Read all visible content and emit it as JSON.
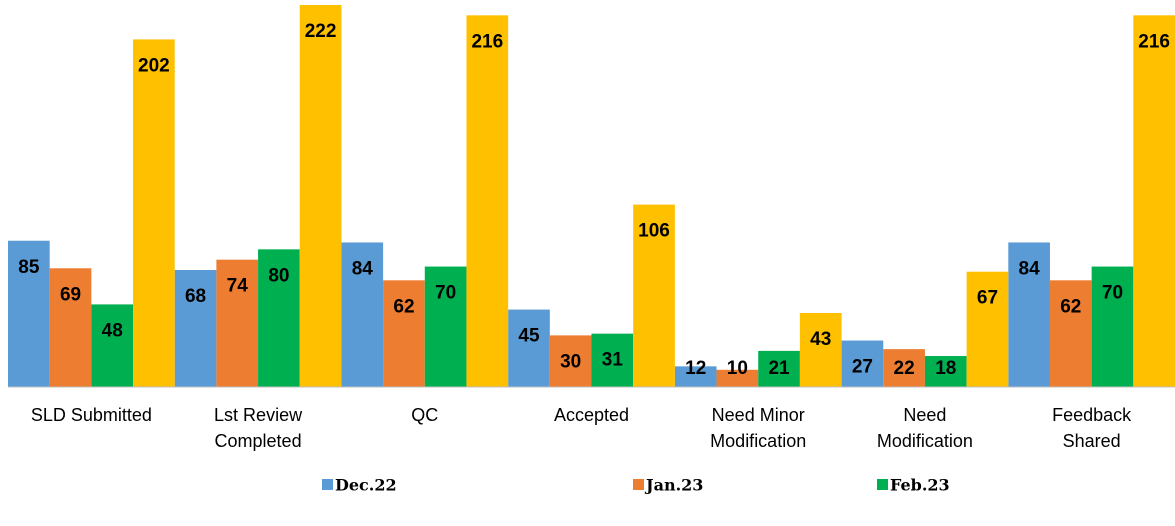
{
  "chart_data": {
    "type": "bar",
    "categories": [
      "SLD Submitted",
      "Lst Review Completed",
      "QC",
      "Accepted",
      "Need Minor Modification",
      "Need Modification",
      "Feedback Shared"
    ],
    "series": [
      {
        "name": "Dec.22",
        "color": "#5b9bd5",
        "values": [
          85,
          68,
          84,
          45,
          12,
          27,
          84
        ]
      },
      {
        "name": "Jan.23",
        "color": "#ed7d31",
        "values": [
          69,
          74,
          62,
          30,
          10,
          22,
          62
        ]
      },
      {
        "name": "Feb.23",
        "color": "#00b050",
        "values": [
          48,
          80,
          70,
          31,
          21,
          18,
          70
        ]
      },
      {
        "color": "#ffc000",
        "values": [
          202,
          222,
          216,
          106,
          43,
          67,
          216
        ]
      }
    ],
    "ylim": [
      0,
      222
    ],
    "legend": "bottom"
  }
}
